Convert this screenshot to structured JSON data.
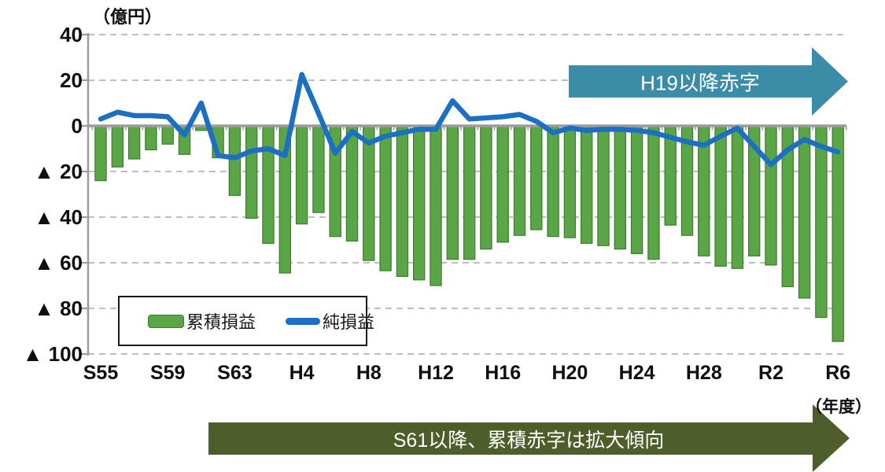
{
  "axes": {
    "y_unit": "（億円）",
    "x_unit": "（年度）",
    "y_ticks": [
      {
        "value": 40,
        "label": "40"
      },
      {
        "value": 20,
        "label": "20"
      },
      {
        "value": 0,
        "label": "0"
      },
      {
        "value": -20,
        "label": "▲ 20"
      },
      {
        "value": -40,
        "label": "▲ 40"
      },
      {
        "value": -60,
        "label": "▲ 60"
      },
      {
        "value": -80,
        "label": "▲ 80"
      },
      {
        "value": -100,
        "label": "▲ 100"
      }
    ],
    "x_tick_labels": [
      "S55",
      "S59",
      "S63",
      "H4",
      "H8",
      "H12",
      "H16",
      "H20",
      "H24",
      "H28",
      "R2",
      "R6"
    ]
  },
  "legend": {
    "items": [
      {
        "type": "bar",
        "label": "累積損益",
        "color": "#5AA546"
      },
      {
        "type": "line",
        "label": "純損益",
        "color": "#1C70C4"
      }
    ]
  },
  "annotations": {
    "top_arrow": {
      "text": "H19以降赤字",
      "color": "#3B8CA6",
      "text_color": "#FFFFFF"
    },
    "bottom_arrow": {
      "text": "S61以降、累積赤字は拡大傾向",
      "color": "#4D5E2A",
      "text_color": "#FFFFFF"
    }
  },
  "colors": {
    "bar": "#5AA546",
    "bar_border": "#3E7C2F",
    "line": "#1C70C4",
    "grid": "#A8A8A8",
    "axis": "#9C9C9C",
    "text": "#0F0F0F",
    "background": "#FFFFFF"
  },
  "chart_data": {
    "type": "bar+line",
    "title": "",
    "xlabel": "（年度）",
    "ylabel": "（億円）",
    "ylim": [
      -100,
      40
    ],
    "grid": "horizontal dashed",
    "legend_position": "inside bottom-left",
    "x_tick_step": 4,
    "x": [
      "S55",
      "S56",
      "S57",
      "S58",
      "S59",
      "S60",
      "S61",
      "S62",
      "S63",
      "H1",
      "H2",
      "H3",
      "H4",
      "H5",
      "H6",
      "H7",
      "H8",
      "H9",
      "H10",
      "H11",
      "H12",
      "H13",
      "H14",
      "H15",
      "H16",
      "H17",
      "H18",
      "H19",
      "H20",
      "H21",
      "H22",
      "H23",
      "H24",
      "H25",
      "H26",
      "H27",
      "H28",
      "H29",
      "H30",
      "R1",
      "R2",
      "R3",
      "R4",
      "R5",
      "R6"
    ],
    "series": [
      {
        "name": "累積損益",
        "type": "bar",
        "color": "#5AA546",
        "values": [
          -24,
          -18,
          -14.5,
          -10.5,
          -8,
          -12.5,
          -2,
          -14,
          -30.5,
          -40.5,
          -51.5,
          -64.5,
          -43,
          -38,
          -48.5,
          -50.5,
          -59,
          -63.5,
          -66,
          -67.5,
          -70,
          -58.5,
          -58.5,
          -54,
          -51,
          -48,
          -45.5,
          -48.5,
          -49,
          -51.5,
          -52.5,
          -54,
          -56,
          -58.5,
          -43.5,
          -48,
          -57,
          -61.5,
          -62.5,
          -57,
          -61,
          -70.5,
          -75.5,
          -84,
          -94.5
        ]
      },
      {
        "name": "純損益",
        "type": "line",
        "color": "#1C70C4",
        "values": [
          3,
          6,
          4.5,
          4.5,
          4,
          -4,
          10,
          -13,
          -14,
          -11,
          -10,
          -13,
          22.5,
          5.5,
          -12,
          -2.5,
          -7.5,
          -4.5,
          -3,
          -1.5,
          -1.5,
          11,
          3,
          3.5,
          4,
          5,
          2,
          -3,
          -1,
          -2,
          -1.5,
          -1.5,
          -2,
          -3,
          -5,
          -7,
          -8.5,
          -4.5,
          -1,
          -9,
          -17,
          -10.5,
          -6,
          -9,
          -11.5
        ]
      }
    ]
  }
}
